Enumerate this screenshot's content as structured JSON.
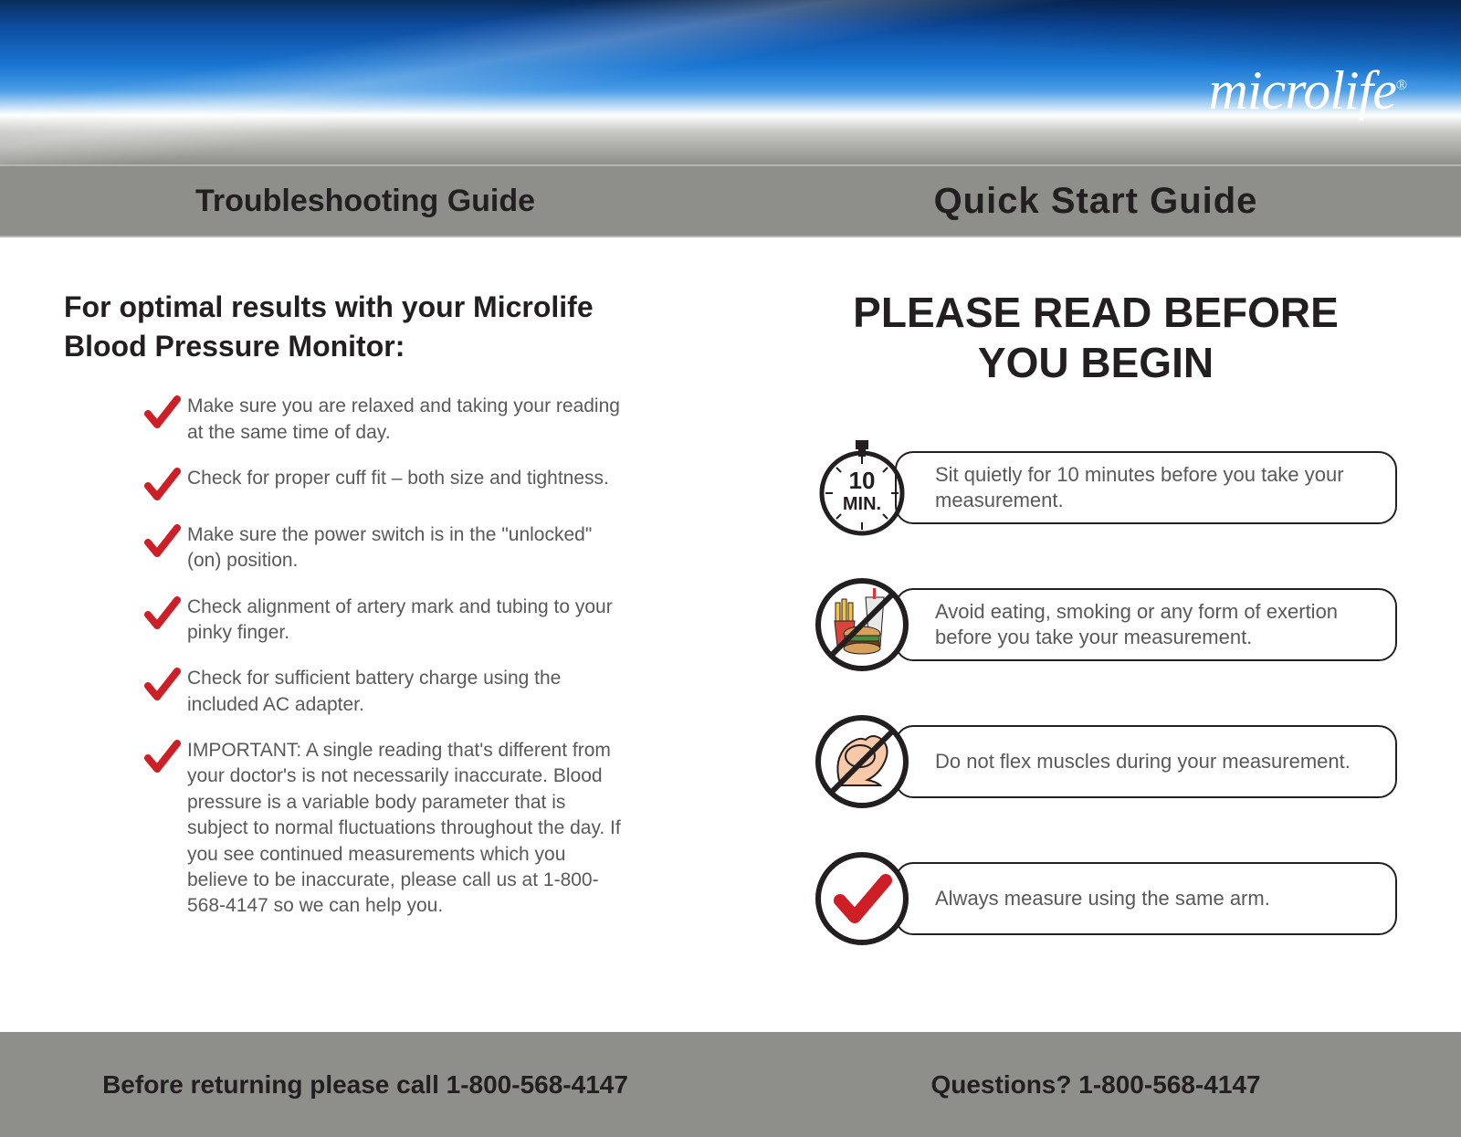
{
  "brand": "microlife",
  "header": {
    "left_title": "Troubleshooting Guide",
    "right_title": "Quick Start Guide"
  },
  "left": {
    "heading_l1": "For optimal results with your Microlife",
    "heading_l2": "Blood Pressure Monitor:",
    "tips": [
      "Make sure you are relaxed and taking your reading at the same time of day.",
      "Check for proper cuff fit – both size and tightness.",
      "Make sure the power switch is in the \"unlocked\" (on) position.",
      "Check alignment of artery mark and tubing to your pinky finger.",
      "Check for sufficient battery charge using the included AC adapter.",
      "IMPORTANT: A single reading that's different from your doctor's is not necessarily inaccurate.  Blood pressure is a variable body parameter that is subject to normal fluctuations throughout the day.  If you see continued measurements which you believe to be inaccurate, please call us at 1-800-568-4147 so we can help you."
    ],
    "check_color": "#ce1f27"
  },
  "right": {
    "heading_l1": "PLEASE READ BEFORE",
    "heading_l2": "YOU BEGIN",
    "stopwatch": {
      "num": "10",
      "unit": "MIN."
    },
    "callouts": [
      "Sit quietly for 10 minutes before you take your measurement.",
      "Avoid eating, smoking or any form of exertion before you take your measurement.",
      "Do not flex muscles during your measurement.",
      "Always measure using the same arm."
    ]
  },
  "footer": {
    "left": "Before returning please call 1-800-568-4147",
    "right": "Questions? 1-800-568-4147"
  }
}
